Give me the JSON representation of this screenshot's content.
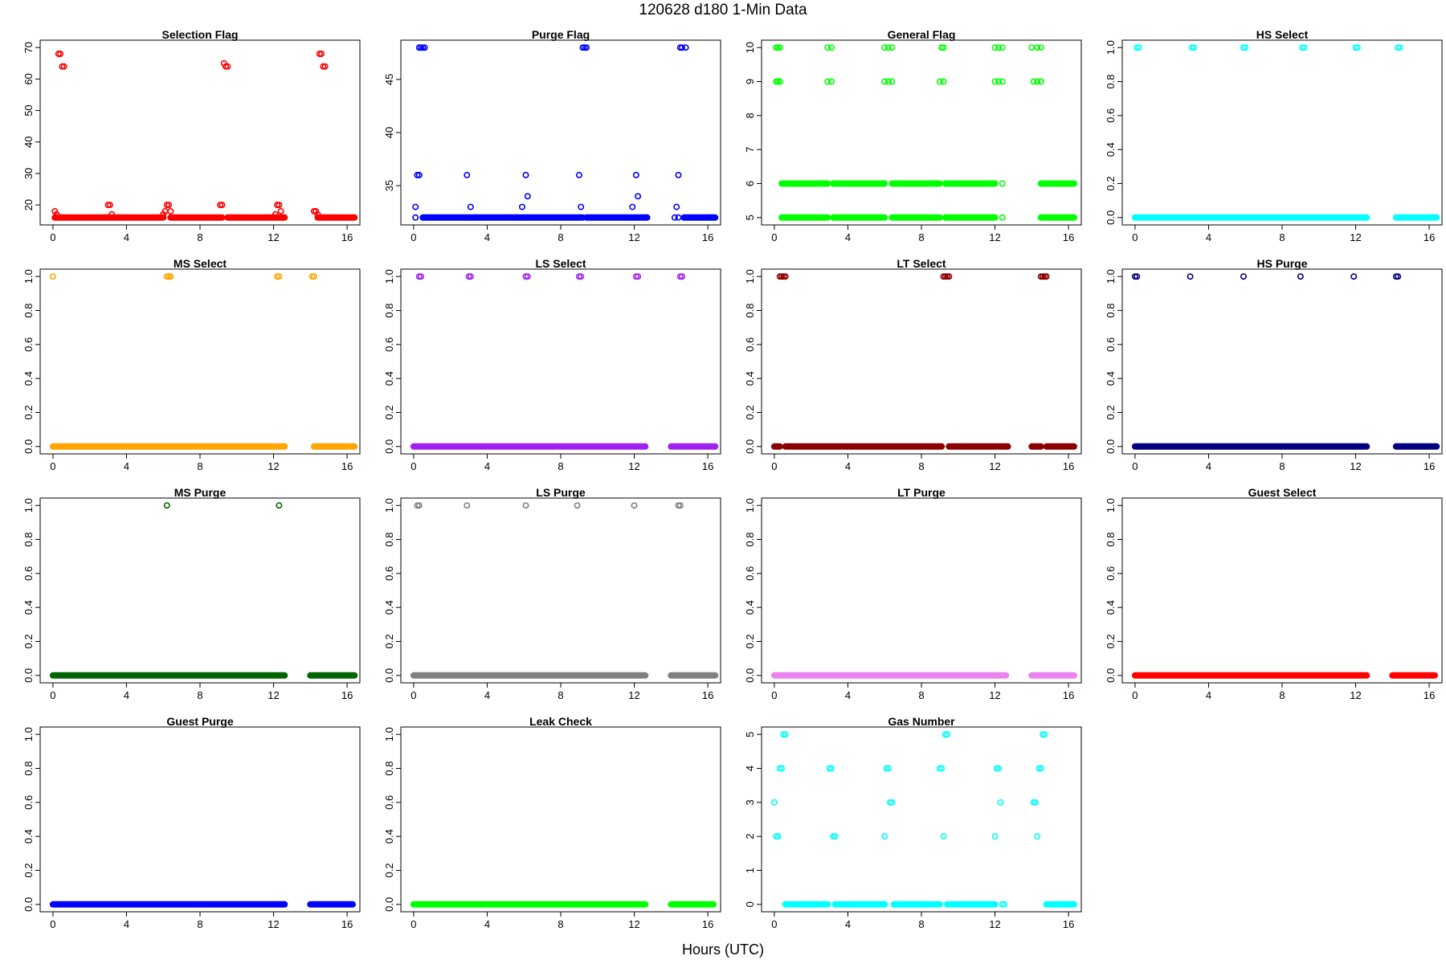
{
  "figure": {
    "title": "120628   d180   1-Min Data",
    "xlabel": "Hours (UTC)"
  },
  "chart_data": [
    {
      "type": "scatter",
      "title": "Selection Flag",
      "color": "#ff0000",
      "xlim": [
        0,
        16
      ],
      "ylim": [
        16,
        70
      ],
      "xticks": [
        0,
        4,
        8,
        12,
        16
      ],
      "yticks": [
        20,
        30,
        40,
        50,
        60,
        70
      ],
      "segments": [
        [
          0.1,
          6.0,
          16
        ],
        [
          6.4,
          9.2,
          16
        ],
        [
          9.5,
          12.6,
          16
        ],
        [
          14.4,
          16.4,
          16
        ]
      ],
      "points": [
        [
          0.1,
          18
        ],
        [
          0.2,
          17
        ],
        [
          0.3,
          68
        ],
        [
          0.4,
          68
        ],
        [
          0.5,
          64
        ],
        [
          0.6,
          64
        ],
        [
          3.0,
          20
        ],
        [
          3.1,
          20
        ],
        [
          3.2,
          17
        ],
        [
          6.0,
          17
        ],
        [
          6.1,
          18
        ],
        [
          6.2,
          20
        ],
        [
          6.3,
          20
        ],
        [
          6.4,
          18
        ],
        [
          9.1,
          20
        ],
        [
          9.2,
          20
        ],
        [
          9.3,
          65
        ],
        [
          9.4,
          64
        ],
        [
          9.5,
          64
        ],
        [
          12.1,
          17
        ],
        [
          12.2,
          20
        ],
        [
          12.3,
          20
        ],
        [
          12.4,
          18
        ],
        [
          12.5,
          16
        ],
        [
          14.2,
          18
        ],
        [
          14.3,
          18
        ],
        [
          14.4,
          17
        ],
        [
          14.5,
          68
        ],
        [
          14.6,
          68
        ],
        [
          14.7,
          64
        ],
        [
          14.8,
          64
        ]
      ]
    },
    {
      "type": "scatter",
      "title": "Purge Flag",
      "color": "#0000ff",
      "xlim": [
        0,
        16
      ],
      "ylim": [
        32,
        48
      ],
      "xticks": [
        0,
        4,
        8,
        12,
        16
      ],
      "yticks": [
        35,
        40,
        45
      ],
      "segments": [
        [
          0.5,
          9.2,
          32
        ],
        [
          9.4,
          12.7,
          32
        ],
        [
          14.7,
          16.4,
          32
        ]
      ],
      "points": [
        [
          0.1,
          32
        ],
        [
          0.1,
          33
        ],
        [
          0.2,
          36
        ],
        [
          0.3,
          36
        ],
        [
          0.3,
          48
        ],
        [
          0.4,
          48
        ],
        [
          0.5,
          48
        ],
        [
          0.6,
          48
        ],
        [
          2.9,
          36
        ],
        [
          3.1,
          33
        ],
        [
          5.9,
          33
        ],
        [
          6.1,
          36
        ],
        [
          6.2,
          34
        ],
        [
          9.0,
          36
        ],
        [
          9.1,
          33
        ],
        [
          9.2,
          48
        ],
        [
          9.3,
          48
        ],
        [
          9.4,
          48
        ],
        [
          11.9,
          33
        ],
        [
          12.1,
          36
        ],
        [
          12.2,
          34
        ],
        [
          14.2,
          32
        ],
        [
          14.3,
          33
        ],
        [
          14.4,
          32
        ],
        [
          14.4,
          36
        ],
        [
          14.5,
          48
        ],
        [
          14.6,
          48
        ],
        [
          14.8,
          48
        ]
      ]
    },
    {
      "type": "scatter",
      "title": "General Flag",
      "color": "#00ff00",
      "xlim": [
        0,
        16
      ],
      "ylim": [
        5,
        10
      ],
      "xticks": [
        0,
        4,
        8,
        12,
        16
      ],
      "yticks": [
        5,
        6,
        7,
        8,
        9,
        10
      ],
      "segments": [
        [
          0.4,
          2.9,
          5
        ],
        [
          3.2,
          6.0,
          5
        ],
        [
          6.4,
          9.0,
          5
        ],
        [
          9.3,
          12.0,
          5
        ],
        [
          14.5,
          16.3,
          5
        ],
        [
          0.4,
          2.9,
          6
        ],
        [
          3.2,
          6.0,
          6
        ],
        [
          6.4,
          9.0,
          6
        ],
        [
          9.3,
          12.0,
          6
        ],
        [
          14.5,
          16.3,
          6
        ]
      ],
      "points": [
        [
          0.1,
          9
        ],
        [
          0.2,
          9
        ],
        [
          0.3,
          9
        ],
        [
          0.1,
          10
        ],
        [
          0.2,
          10
        ],
        [
          0.3,
          10
        ],
        [
          2.9,
          9
        ],
        [
          3.1,
          9
        ],
        [
          2.9,
          10
        ],
        [
          3.1,
          10
        ],
        [
          6.0,
          9
        ],
        [
          6.2,
          9
        ],
        [
          6.4,
          9
        ],
        [
          6.0,
          10
        ],
        [
          6.2,
          10
        ],
        [
          6.4,
          10
        ],
        [
          9.0,
          9
        ],
        [
          9.2,
          9
        ],
        [
          9.1,
          10
        ],
        [
          9.2,
          10
        ],
        [
          12.0,
          9
        ],
        [
          12.2,
          9
        ],
        [
          12.4,
          9
        ],
        [
          12.0,
          10
        ],
        [
          12.2,
          10
        ],
        [
          12.4,
          10
        ],
        [
          12.4,
          5
        ],
        [
          12.4,
          6
        ],
        [
          14.1,
          9
        ],
        [
          14.3,
          9
        ],
        [
          14.5,
          9
        ],
        [
          14.0,
          10
        ],
        [
          14.3,
          10
        ],
        [
          14.5,
          10
        ]
      ]
    },
    {
      "type": "scatter",
      "title": "HS Select",
      "color": "#00ffff",
      "xlim": [
        0,
        16
      ],
      "ylim": [
        0,
        1
      ],
      "xticks": [
        0,
        4,
        8,
        12,
        16
      ],
      "yticks": [
        0.0,
        0.2,
        0.4,
        0.6,
        0.8,
        1.0
      ],
      "segments": [
        [
          0.0,
          12.6,
          0
        ],
        [
          14.2,
          16.4,
          0
        ]
      ],
      "points": [
        [
          0.1,
          1
        ],
        [
          0.2,
          1
        ],
        [
          3.1,
          1
        ],
        [
          3.2,
          1
        ],
        [
          5.9,
          1
        ],
        [
          6.0,
          1
        ],
        [
          9.1,
          1
        ],
        [
          9.2,
          1
        ],
        [
          12.0,
          1
        ],
        [
          12.1,
          1
        ],
        [
          14.3,
          1
        ],
        [
          14.4,
          1
        ]
      ]
    },
    {
      "type": "scatter",
      "title": "MS Select",
      "color": "#ffa500",
      "xlim": [
        0,
        16
      ],
      "ylim": [
        0,
        1
      ],
      "xticks": [
        0,
        4,
        8,
        12,
        16
      ],
      "yticks": [
        0.0,
        0.2,
        0.4,
        0.6,
        0.8,
        1.0
      ],
      "segments": [
        [
          0.0,
          12.6,
          0
        ],
        [
          14.2,
          16.4,
          0
        ]
      ],
      "points": [
        [
          0.0,
          1
        ],
        [
          6.2,
          1
        ],
        [
          6.3,
          1
        ],
        [
          6.4,
          1
        ],
        [
          12.2,
          1
        ],
        [
          12.3,
          1
        ],
        [
          14.1,
          1
        ],
        [
          14.2,
          1
        ]
      ]
    },
    {
      "type": "scatter",
      "title": "LS Select",
      "color": "#a020f0",
      "xlim": [
        0,
        16
      ],
      "ylim": [
        0,
        1
      ],
      "xticks": [
        0,
        4,
        8,
        12,
        16
      ],
      "yticks": [
        0.0,
        0.2,
        0.4,
        0.6,
        0.8,
        1.0
      ],
      "segments": [
        [
          0.0,
          12.6,
          0
        ],
        [
          14.0,
          16.4,
          0
        ]
      ],
      "points": [
        [
          0.3,
          1
        ],
        [
          0.4,
          1
        ],
        [
          3.0,
          1
        ],
        [
          3.1,
          1
        ],
        [
          6.1,
          1
        ],
        [
          6.2,
          1
        ],
        [
          9.0,
          1
        ],
        [
          9.1,
          1
        ],
        [
          12.1,
          1
        ],
        [
          12.2,
          1
        ],
        [
          14.5,
          1
        ],
        [
          14.6,
          1
        ]
      ]
    },
    {
      "type": "scatter",
      "title": "LT Select",
      "color": "#8b0000",
      "xlim": [
        0,
        16
      ],
      "ylim": [
        0,
        1
      ],
      "xticks": [
        0,
        4,
        8,
        12,
        16
      ],
      "yticks": [
        0.0,
        0.2,
        0.4,
        0.6,
        0.8,
        1.0
      ],
      "segments": [
        [
          0.0,
          0.3,
          0
        ],
        [
          0.6,
          9.1,
          0
        ],
        [
          9.5,
          12.7,
          0
        ],
        [
          14.0,
          14.5,
          0
        ],
        [
          14.8,
          16.3,
          0
        ]
      ],
      "points": [
        [
          0.3,
          1
        ],
        [
          0.4,
          1
        ],
        [
          0.5,
          1
        ],
        [
          0.6,
          1
        ],
        [
          9.2,
          1
        ],
        [
          9.3,
          1
        ],
        [
          9.4,
          1
        ],
        [
          9.5,
          1
        ],
        [
          14.5,
          1
        ],
        [
          14.6,
          1
        ],
        [
          14.7,
          1
        ],
        [
          14.8,
          1
        ]
      ]
    },
    {
      "type": "scatter",
      "title": "HS Purge",
      "color": "#000080",
      "xlim": [
        0,
        16
      ],
      "ylim": [
        0,
        1
      ],
      "xticks": [
        0,
        4,
        8,
        12,
        16
      ],
      "yticks": [
        0.0,
        0.2,
        0.4,
        0.6,
        0.8,
        1.0
      ],
      "segments": [
        [
          0.0,
          12.6,
          0
        ],
        [
          14.2,
          16.4,
          0
        ]
      ],
      "points": [
        [
          0.0,
          1
        ],
        [
          0.1,
          1
        ],
        [
          3.0,
          1
        ],
        [
          5.9,
          1
        ],
        [
          9.0,
          1
        ],
        [
          11.9,
          1
        ],
        [
          14.2,
          1
        ],
        [
          14.3,
          1
        ]
      ]
    },
    {
      "type": "scatter",
      "title": "MS Purge",
      "color": "#006400",
      "xlim": [
        0,
        16
      ],
      "ylim": [
        0,
        1
      ],
      "xticks": [
        0,
        4,
        8,
        12,
        16
      ],
      "yticks": [
        0.0,
        0.2,
        0.4,
        0.6,
        0.8,
        1.0
      ],
      "segments": [
        [
          0.0,
          12.6,
          0
        ],
        [
          14.0,
          16.4,
          0
        ]
      ],
      "points": [
        [
          6.2,
          1
        ],
        [
          12.3,
          1
        ]
      ]
    },
    {
      "type": "scatter",
      "title": "LS Purge",
      "color": "#808080",
      "xlim": [
        0,
        16
      ],
      "ylim": [
        0,
        1
      ],
      "xticks": [
        0,
        4,
        8,
        12,
        16
      ],
      "yticks": [
        0.0,
        0.2,
        0.4,
        0.6,
        0.8,
        1.0
      ],
      "segments": [
        [
          0.0,
          12.6,
          0
        ],
        [
          14.0,
          16.4,
          0
        ]
      ],
      "points": [
        [
          0.2,
          1
        ],
        [
          0.3,
          1
        ],
        [
          2.9,
          1
        ],
        [
          6.1,
          1
        ],
        [
          8.9,
          1
        ],
        [
          12.0,
          1
        ],
        [
          14.4,
          1
        ],
        [
          14.5,
          1
        ]
      ]
    },
    {
      "type": "scatter",
      "title": "LT Purge",
      "color": "#ee82ee",
      "xlim": [
        0,
        16
      ],
      "ylim": [
        0,
        1
      ],
      "xticks": [
        0,
        4,
        8,
        12,
        16
      ],
      "yticks": [
        0.0,
        0.2,
        0.4,
        0.6,
        0.8,
        1.0
      ],
      "segments": [
        [
          0.0,
          12.6,
          0
        ],
        [
          14.0,
          16.3,
          0
        ]
      ],
      "points": []
    },
    {
      "type": "scatter",
      "title": "Guest Select",
      "color": "#ff0000",
      "xlim": [
        0,
        16
      ],
      "ylim": [
        0,
        1
      ],
      "xticks": [
        0,
        4,
        8,
        12,
        16
      ],
      "yticks": [
        0.0,
        0.2,
        0.4,
        0.6,
        0.8,
        1.0
      ],
      "segments": [
        [
          0.0,
          12.6,
          0
        ],
        [
          14.0,
          16.3,
          0
        ]
      ],
      "points": []
    },
    {
      "type": "scatter",
      "title": "Guest Purge",
      "color": "#0000ff",
      "xlim": [
        0,
        16
      ],
      "ylim": [
        0,
        1
      ],
      "xticks": [
        0,
        4,
        8,
        12,
        16
      ],
      "yticks": [
        0.0,
        0.2,
        0.4,
        0.6,
        0.8,
        1.0
      ],
      "segments": [
        [
          0.0,
          12.6,
          0
        ],
        [
          14.0,
          16.3,
          0
        ]
      ],
      "points": []
    },
    {
      "type": "scatter",
      "title": "Leak Check",
      "color": "#00ff00",
      "xlim": [
        0,
        16
      ],
      "ylim": [
        0,
        1
      ],
      "xticks": [
        0,
        4,
        8,
        12,
        16
      ],
      "yticks": [
        0.0,
        0.2,
        0.4,
        0.6,
        0.8,
        1.0
      ],
      "segments": [
        [
          0.0,
          12.6,
          0
        ],
        [
          14.0,
          16.3,
          0
        ]
      ],
      "points": []
    },
    {
      "type": "scatter",
      "title": "Gas Number",
      "color": "#00ffff",
      "xlim": [
        0,
        16
      ],
      "ylim": [
        0,
        5
      ],
      "xticks": [
        0,
        4,
        8,
        12,
        16
      ],
      "yticks": [
        0,
        1,
        2,
        3,
        4,
        5
      ],
      "segments": [
        [
          0.6,
          2.9,
          0
        ],
        [
          3.3,
          6.0,
          0
        ],
        [
          6.5,
          9.0,
          0
        ],
        [
          9.4,
          12.0,
          0
        ],
        [
          14.8,
          16.3,
          0
        ]
      ],
      "points": [
        [
          0.0,
          3
        ],
        [
          0.1,
          2
        ],
        [
          0.2,
          2
        ],
        [
          0.3,
          4
        ],
        [
          0.4,
          4
        ],
        [
          0.5,
          5
        ],
        [
          0.6,
          5
        ],
        [
          3.0,
          4
        ],
        [
          3.1,
          4
        ],
        [
          3.2,
          2
        ],
        [
          3.3,
          2
        ],
        [
          6.0,
          2
        ],
        [
          6.1,
          4
        ],
        [
          6.2,
          4
        ],
        [
          6.3,
          3
        ],
        [
          6.4,
          3
        ],
        [
          9.0,
          4
        ],
        [
          9.1,
          4
        ],
        [
          9.2,
          2
        ],
        [
          9.3,
          5
        ],
        [
          9.4,
          5
        ],
        [
          12.0,
          2
        ],
        [
          12.1,
          4
        ],
        [
          12.2,
          4
        ],
        [
          12.3,
          3
        ],
        [
          12.4,
          0
        ],
        [
          12.5,
          0
        ],
        [
          14.1,
          3
        ],
        [
          14.2,
          3
        ],
        [
          14.3,
          2
        ],
        [
          14.4,
          4
        ],
        [
          14.5,
          4
        ],
        [
          14.6,
          5
        ],
        [
          14.7,
          5
        ]
      ]
    }
  ]
}
